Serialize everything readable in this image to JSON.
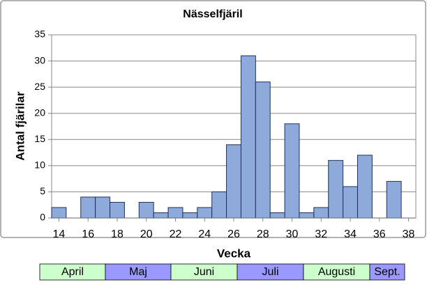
{
  "chart_data": {
    "type": "bar",
    "title": "Nässelfjäril",
    "x_label": "Vecka",
    "y_label": "Antal fjärilar",
    "x": [
      14,
      15,
      16,
      17,
      18,
      19,
      20,
      21,
      22,
      23,
      24,
      25,
      26,
      27,
      28,
      29,
      30,
      31,
      32,
      33,
      34,
      35,
      36,
      37
    ],
    "values": [
      2,
      0,
      4,
      4,
      3,
      0,
      3,
      1,
      2,
      1,
      2,
      5,
      14,
      31,
      26,
      1,
      18,
      1,
      2,
      11,
      6,
      12,
      0,
      7
    ],
    "color": "#8eaadb",
    "xlim": [
      13.5,
      38.5
    ],
    "xticks": [
      14,
      16,
      18,
      20,
      22,
      24,
      26,
      28,
      30,
      32,
      34,
      36,
      38
    ],
    "ylim": [
      0,
      35
    ],
    "yticks": [
      0,
      5,
      10,
      15,
      20,
      25,
      30,
      35
    ],
    "grid": true,
    "months": [
      {
        "name": "April",
        "color": "#ccffcc"
      },
      {
        "name": "Maj",
        "color": "#9999ff"
      },
      {
        "name": "Juni",
        "color": "#ccffcc"
      },
      {
        "name": "Juli",
        "color": "#9999ff"
      },
      {
        "name": "Augusti",
        "color": "#ccffcc"
      },
      {
        "name": "Sept.",
        "color": "#9999ff"
      }
    ]
  }
}
